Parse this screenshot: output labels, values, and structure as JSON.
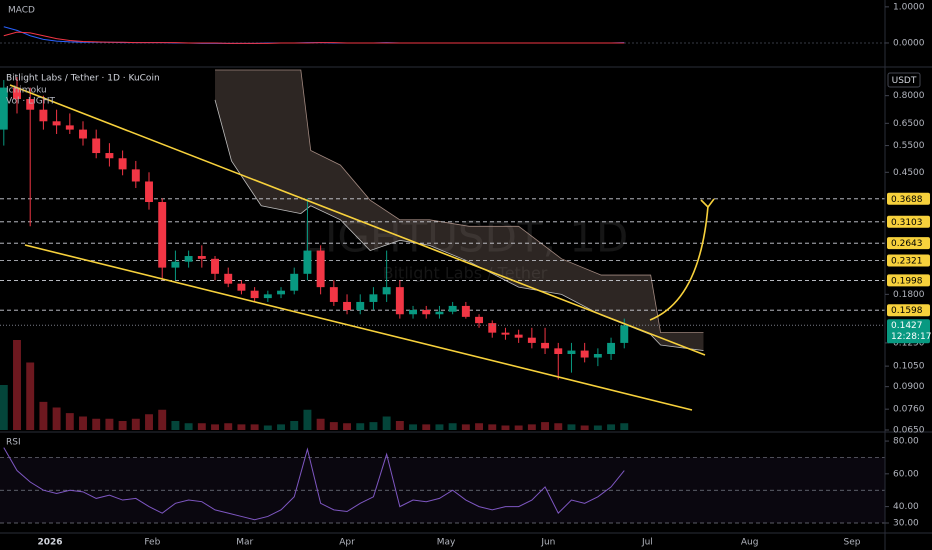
{
  "chart_data": [
    {
      "type": "line",
      "title": "MACD",
      "ylim": [
        -0.61,
        1.19
      ],
      "yticks": [
        {
          "value": 1,
          "label": "1.0000"
        },
        {
          "value": 0,
          "label": "0.0000"
        }
      ],
      "series": [
        {
          "color": "#2962ff",
          "values": [
            0.45,
            0.35,
            0.2,
            0.1,
            0.05,
            0.03,
            0.02,
            0.02,
            0.02,
            0.01,
            0.01,
            0.01,
            0.01,
            0,
            0,
            -0.01,
            -0.01,
            -0.01,
            -0.01,
            -0.01,
            0,
            0,
            0,
            0.01,
            0.01,
            0,
            0,
            0,
            0,
            0.01,
            0,
            0,
            0,
            0,
            0,
            0,
            0,
            0,
            0,
            0,
            0,
            0,
            0,
            0,
            0,
            0,
            0,
            0.01
          ]
        },
        {
          "color": "#f23645",
          "values": [
            0.2,
            0.3,
            0.28,
            0.2,
            0.12,
            0.07,
            0.04,
            0.03,
            0.02,
            0.02,
            0.01,
            0.01,
            0.01,
            0.01,
            0,
            0,
            0,
            -0.01,
            -0.01,
            -0.01,
            -0.01,
            0,
            0,
            0,
            0.01,
            0.01,
            0,
            0,
            0,
            0,
            0,
            0,
            0,
            0,
            0,
            0,
            0,
            0,
            0,
            0,
            0,
            0,
            0,
            0,
            0,
            0,
            0,
            0
          ]
        }
      ]
    },
    {
      "type": "candlestick",
      "title": "Bitlight Labs / Tether · 1D · KuCoin",
      "indicators": [
        "Ichimoku",
        "Vol · LIGHT"
      ],
      "watermark": [
        "LIGHTUSDT, 1D",
        "Bitlight Labs / Tether"
      ],
      "currency": "USDT",
      "scale": "log",
      "grid": false,
      "up_color": "#089981",
      "down_color": "#f23645",
      "xlim": [
        -15.15,
        253
      ],
      "xticks": [
        {
          "value": 0,
          "label": "2026"
        },
        {
          "value": 31,
          "label": "Feb"
        },
        {
          "value": 59,
          "label": "Mar"
        },
        {
          "value": 90,
          "label": "Apr"
        },
        {
          "value": 120,
          "label": "May"
        },
        {
          "value": 151,
          "label": "Jun"
        },
        {
          "value": 181,
          "label": "Jul"
        },
        {
          "value": 212,
          "label": "Aug"
        },
        {
          "value": 243,
          "label": "Sep"
        }
      ],
      "ylim": [
        0.065,
        0.97
      ],
      "yticks": [
        {
          "value": 0.8,
          "label": "0.8000"
        },
        {
          "value": 0.65,
          "label": "0.6500"
        },
        {
          "value": 0.55,
          "label": "0.5500"
        },
        {
          "value": 0.45,
          "label": "0.4500"
        },
        {
          "value": 0.18,
          "label": "0.1800"
        },
        {
          "value": 0.125,
          "label": "0.1250"
        },
        {
          "value": 0.105,
          "label": "0.1050"
        },
        {
          "value": 0.09,
          "label": "0.0900"
        },
        {
          "value": 0.076,
          "label": "0.0760"
        },
        {
          "value": 0.065,
          "label": "0.0650"
        }
      ],
      "levels": [
        0.3688,
        0.3103,
        0.2643,
        0.2321,
        0.1998,
        0.1598
      ],
      "last_price": 0.1427,
      "countdown": "12:28:17",
      "x": [
        -14,
        -10,
        -6,
        -2,
        2,
        6,
        10,
        14,
        18,
        22,
        26,
        30,
        34,
        38,
        42,
        46,
        50,
        54,
        58,
        62,
        66,
        70,
        74,
        78,
        82,
        86,
        90,
        94,
        98,
        102,
        106,
        110,
        114,
        118,
        122,
        126,
        130,
        134,
        138,
        142,
        146,
        150,
        154,
        158,
        162,
        166,
        170,
        174
      ],
      "open": [
        0.62,
        0.85,
        0.78,
        0.72,
        0.66,
        0.64,
        0.62,
        0.58,
        0.52,
        0.5,
        0.46,
        0.42,
        0.36,
        0.22,
        0.23,
        0.24,
        0.235,
        0.21,
        0.195,
        0.185,
        0.175,
        0.18,
        0.185,
        0.21,
        0.25,
        0.19,
        0.17,
        0.16,
        0.17,
        0.18,
        0.19,
        0.155,
        0.16,
        0.155,
        0.158,
        0.165,
        0.152,
        0.145,
        0.135,
        0.133,
        0.13,
        0.125,
        0.12,
        0.115,
        0.118,
        0.112,
        0.115,
        0.125
      ],
      "high": [
        0.9,
        0.92,
        0.85,
        0.8,
        0.72,
        0.7,
        0.66,
        0.62,
        0.56,
        0.53,
        0.49,
        0.45,
        0.37,
        0.25,
        0.25,
        0.26,
        0.24,
        0.22,
        0.2,
        0.19,
        0.185,
        0.19,
        0.22,
        0.37,
        0.26,
        0.2,
        0.18,
        0.18,
        0.19,
        0.25,
        0.2,
        0.165,
        0.165,
        0.165,
        0.17,
        0.17,
        0.155,
        0.148,
        0.14,
        0.138,
        0.14,
        0.14,
        0.125,
        0.125,
        0.125,
        0.12,
        0.13,
        0.15
      ],
      "low": [
        0.55,
        0.7,
        0.3,
        0.62,
        0.6,
        0.6,
        0.55,
        0.5,
        0.47,
        0.44,
        0.4,
        0.34,
        0.2,
        0.2,
        0.22,
        0.22,
        0.2,
        0.19,
        0.18,
        0.17,
        0.17,
        0.175,
        0.18,
        0.2,
        0.18,
        0.165,
        0.155,
        0.155,
        0.16,
        0.17,
        0.15,
        0.15,
        0.15,
        0.15,
        0.155,
        0.15,
        0.14,
        0.13,
        0.128,
        0.125,
        0.12,
        0.115,
        0.095,
        0.1,
        0.108,
        0.105,
        0.11,
        0.12
      ],
      "close": [
        0.85,
        0.78,
        0.72,
        0.66,
        0.64,
        0.62,
        0.58,
        0.52,
        0.5,
        0.46,
        0.42,
        0.36,
        0.22,
        0.23,
        0.24,
        0.235,
        0.21,
        0.195,
        0.185,
        0.175,
        0.18,
        0.185,
        0.21,
        0.25,
        0.19,
        0.17,
        0.16,
        0.17,
        0.18,
        0.19,
        0.155,
        0.16,
        0.155,
        0.158,
        0.165,
        0.152,
        0.145,
        0.135,
        0.133,
        0.13,
        0.125,
        0.12,
        0.115,
        0.118,
        0.112,
        0.115,
        0.125,
        0.1427
      ],
      "volume": [
        40,
        80,
        60,
        25,
        20,
        15,
        12,
        10,
        10,
        8,
        10,
        14,
        18,
        8,
        6,
        6,
        5,
        6,
        5,
        5,
        4,
        5,
        8,
        18,
        10,
        7,
        6,
        6,
        7,
        12,
        8,
        5,
        5,
        5,
        6,
        5,
        6,
        5,
        4,
        4,
        5,
        7,
        6,
        5,
        4,
        4,
        5,
        6
      ],
      "cloud": {
        "x": [
          50,
          55,
          64,
          76,
          79,
          88,
          97,
          106,
          115,
          127,
          142,
          155,
          167,
          182,
          185,
          198
        ],
        "upper": [
          0.97,
          0.97,
          0.97,
          0.97,
          0.53,
          0.475,
          0.365,
          0.315,
          0.315,
          0.3,
          0.3,
          0.235,
          0.208,
          0.208,
          0.135,
          0.135
        ],
        "lower": [
          0.775,
          0.49,
          0.35,
          0.33,
          0.35,
          0.315,
          0.25,
          0.27,
          0.26,
          0.23,
          0.19,
          0.18,
          0.154,
          0.133,
          0.123,
          0.118
        ]
      }
    },
    {
      "type": "line",
      "title": "RSI",
      "color": "#7e57c2",
      "ylim": [
        24.5,
        83.7
      ],
      "yticks": [
        {
          "value": 30,
          "label": "30.00"
        },
        {
          "value": 40,
          "label": "40.00"
        },
        {
          "value": 60,
          "label": "60.00"
        },
        {
          "value": 80,
          "label": "80.00"
        }
      ],
      "levels": [
        70,
        50,
        30
      ],
      "values": [
        76,
        62,
        55,
        50,
        48,
        50,
        49,
        45,
        47,
        44,
        45,
        40,
        36,
        42,
        44,
        43,
        38,
        36,
        34,
        32,
        34,
        38,
        46,
        75,
        42,
        38,
        37,
        42,
        46,
        72,
        40,
        44,
        43,
        45,
        50,
        44,
        40,
        38,
        40,
        40,
        44,
        52,
        36,
        44,
        42,
        46,
        52,
        62
      ]
    }
  ]
}
